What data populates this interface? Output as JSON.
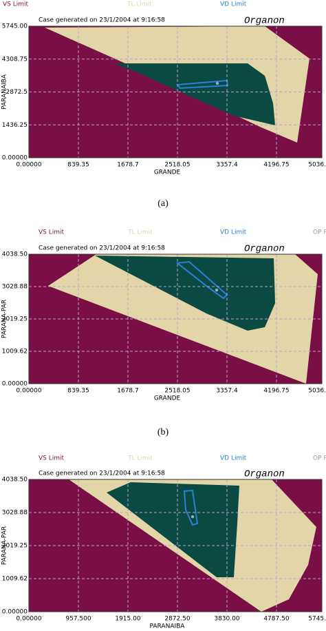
{
  "chart_data": [
    {
      "type": "region",
      "note": "Case generated on 23/1/2004 at  9:16:58",
      "watermark": "Organon",
      "xlabel": "GRANDE",
      "ylabel": "PARANAIBA",
      "caption": "(a)",
      "xlim": [
        0,
        4966
      ],
      "ylim": [
        0,
        5745
      ],
      "xticks": [
        "0.00000",
        839.35,
        1678.7,
        2518.05,
        3357.4,
        4196.75,
        {
          "value": 5036.1,
          "label": "5036."
        }
      ],
      "yticks": [
        {
          "value": 0,
          "label": "0.00000"
        },
        1436.25,
        4308.75,
        2872.5,
        {
          "value": 5745,
          "label": "5745.00"
        }
      ],
      "series": [
        {
          "name": "VS Limit",
          "color": "#7a0f45"
        },
        {
          "name": "TL Limit",
          "color": "#e2d6a8",
          "x": [
            268,
            3999,
            4756,
            4547,
            3940,
            1842
          ],
          "y": [
            5685,
            5745,
            4332,
            662,
            1324,
            3880
          ]
        },
        {
          "color": "#0b4a42",
          "x": [
            1434,
            3707,
            3999,
            4139,
            4174,
            3474,
            2425,
            1842
          ],
          "y": [
            4121,
            4121,
            3580,
            2376,
            1414,
            1835,
            3038,
            3730
          ]
        },
        {
          "name": "VD Limit",
          "color": "#2a80d8",
          "x": [
            2518,
            3357,
            3369,
            2565
          ],
          "y": [
            3188,
            3369,
            3158,
            3038
          ]
        }
      ],
      "point": {
        "x": 3194,
        "y": 3249
      }
    },
    {
      "type": "region",
      "note": "Case generated on 23/1/2004 at  9:16:58",
      "watermark": "Organon",
      "xlabel": "GRANDE",
      "ylabel": "PARANA-PAR",
      "caption": "(b)",
      "xlim": [
        0,
        4966
      ],
      "ylim": [
        0,
        4038.5
      ],
      "xticks": [
        "0.00000",
        839.35,
        1678.7,
        2518.05,
        3357.4,
        4196.75,
        {
          "value": 5036.1,
          "label": "5036."
        }
      ],
      "yticks": [
        {
          "value": 0,
          "label": "0.00000"
        },
        1009.62,
        2019.25,
        3028.88,
        {
          "value": 4038.5,
          "label": "4038.50"
        }
      ],
      "series": [
        {
          "name": "VS Limit",
          "color": "#7a0f45"
        },
        {
          "name": "TL Limit",
          "color": "#e2d6a8",
          "x": [
            326,
            1142,
            4511,
            4896,
            4698
          ],
          "y": [
            3050,
            4038,
            4038,
            3415,
            0
          ]
        },
        {
          "color": "#0b4a42",
          "x": [
            1119,
            4150,
            4174,
            3999,
            3707,
            3008
          ],
          "y": [
            3995,
            3909,
            2513,
            1761,
            1654,
            2191
          ]
        },
        {
          "name": "VD Limit",
          "color": "#2a80d8",
          "x": [
            2518,
            2716,
            3357,
            3299,
            3008
          ],
          "y": [
            3759,
            3802,
            2771,
            2663,
            3050
          ]
        },
        {
          "name": "OP P",
          "color": "#999999"
        }
      ],
      "point": {
        "x": 3183,
        "y": 2921
      }
    },
    {
      "type": "region",
      "note": "Case generated on 23/1/2004 at  9:16:58",
      "watermark": "Organon",
      "xlabel": "PARANAIBA",
      "ylabel": "PARANA-PAR",
      "caption": "(c)",
      "xlim": [
        0,
        5666
      ],
      "ylim": [
        0,
        4038.5
      ],
      "xticks": [
        "0.00000",
        "957.500",
        "1915.00",
        "2872.50",
        "3830.00",
        "4787.50",
        {
          "value": 5745,
          "label": "5745."
        }
      ],
      "yticks": [
        {
          "value": 0,
          "label": "0.00000"
        },
        1009.62,
        2019.25,
        3028.88,
        {
          "value": 4038.5,
          "label": "4038.50"
        }
      ],
      "series": [
        {
          "name": "VS Limit",
          "color": "#7a0f45"
        },
        {
          "name": "TL Limit",
          "color": "#e2d6a8",
          "x": [
            771,
            4695,
            5559,
            5400,
            5027,
            4495
          ],
          "y": [
            4038,
            4038,
            2587,
            1430,
            379,
            0
          ]
        },
        {
          "color": "#0b4a42",
          "x": [
            1503,
            1968,
            4070,
            4030,
            3963,
            3631
          ],
          "y": [
            3638,
            3954,
            3848,
            2692,
            1051,
            1051
          ]
        },
        {
          "name": "VD Limit",
          "color": "#2a80d8",
          "x": [
            3006,
            3165,
            3259,
            3165,
            3032
          ],
          "y": [
            3680,
            3701,
            2692,
            2650,
            3112
          ]
        },
        {
          "name": "OP P",
          "color": "#999999"
        }
      ],
      "point": {
        "x": 3165,
        "y": 2902
      }
    }
  ]
}
